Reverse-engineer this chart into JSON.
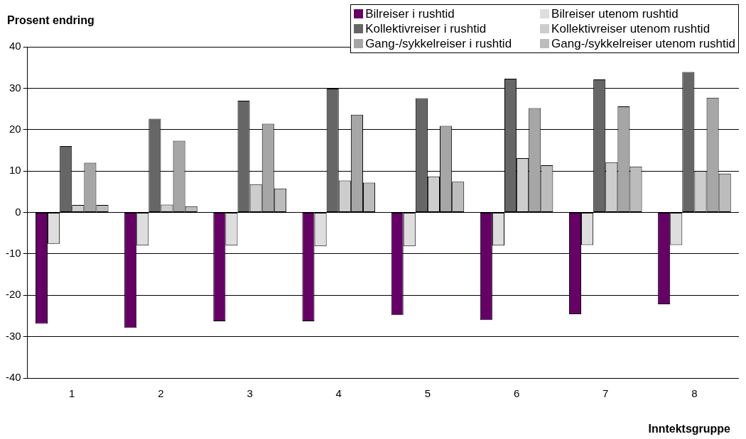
{
  "chart_data": {
    "type": "bar",
    "ylabel": "Prosent endring",
    "xlabel": "Inntektsgruppe",
    "categories": [
      "1",
      "2",
      "3",
      "4",
      "5",
      "6",
      "7",
      "8"
    ],
    "series": [
      {
        "name": "Bilreiser i rushtid",
        "color": "#660066",
        "values": [
          -26.9,
          -27.9,
          -26.3,
          -26.3,
          -24.8,
          -26.0,
          -24.6,
          -22.2
        ]
      },
      {
        "name": "Bilreiser utenom rushtid",
        "color": "#dedede",
        "values": [
          -7.6,
          -8.0,
          -8.0,
          -8.2,
          -8.2,
          -8.0,
          -7.9,
          -7.9
        ]
      },
      {
        "name": "Kollektivreiser i rushtid",
        "color": "#666666",
        "values": [
          16.0,
          22.6,
          27.0,
          29.9,
          27.6,
          32.3,
          32.1,
          33.9
        ]
      },
      {
        "name": "Kollektivreiser utenom rushtid",
        "color": "#cdcdcd",
        "values": [
          1.8,
          1.9,
          6.8,
          7.7,
          8.7,
          13.1,
          12.1,
          10.0
        ]
      },
      {
        "name": "Gang-/sykkelreiser i rushtid",
        "color": "#a6a6a6",
        "values": [
          12.0,
          17.3,
          21.4,
          23.6,
          20.9,
          25.2,
          25.6,
          27.7
        ]
      },
      {
        "name": "Gang-/sykkelreiser utenom rushtid",
        "color": "#bcbcbc",
        "values": [
          1.8,
          1.5,
          5.8,
          7.2,
          7.4,
          11.4,
          11.1,
          9.4
        ]
      }
    ],
    "ylim": [
      -40,
      40
    ],
    "yticks": [
      -40,
      -30,
      -20,
      -10,
      0,
      10,
      20,
      30,
      40
    ],
    "grid": "y",
    "legend": "top right"
  }
}
